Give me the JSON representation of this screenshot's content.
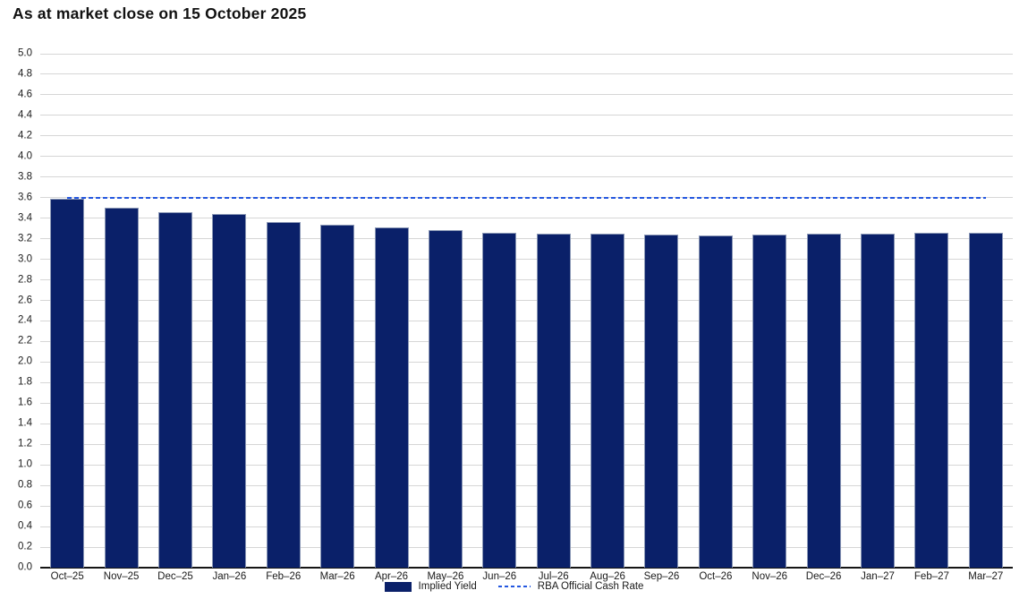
{
  "title": "As at market close on 15 October 2025",
  "legend": {
    "implied_yield_label": "Implied Yield",
    "cash_rate_label": "RBA Official Cash Rate"
  },
  "colors": {
    "bar": "#0a2069",
    "bar_border": "#8a97b5",
    "cash_rate_line": "#2457e0",
    "gridline": "#d6d6d6",
    "axis_line": "#151515",
    "text": "#1a1a1a",
    "title": "#111111",
    "background": "#ffffff"
  },
  "chart_data": {
    "type": "bar",
    "title": "As at market close on 15 October 2025",
    "categories": [
      "Oct–25",
      "Nov–25",
      "Dec–25",
      "Jan–26",
      "Feb–26",
      "Mar–26",
      "Apr–26",
      "May–26",
      "Jun–26",
      "Jul–26",
      "Aug–26",
      "Sep–26",
      "Oct–26",
      "Nov–26",
      "Dec–26",
      "Jan–27",
      "Feb–27",
      "Mar–27"
    ],
    "series": [
      {
        "name": "Implied Yield",
        "type": "bar",
        "values": [
          3.59,
          3.5,
          3.46,
          3.44,
          3.36,
          3.34,
          3.31,
          3.28,
          3.26,
          3.25,
          3.25,
          3.24,
          3.23,
          3.24,
          3.25,
          3.25,
          3.26,
          3.26
        ]
      },
      {
        "name": "RBA Official Cash Rate",
        "type": "line",
        "dashed": true,
        "value": 3.6
      }
    ],
    "xlabel": "",
    "ylabel": "",
    "ylim": [
      0.0,
      5.0
    ],
    "ytick_step": 0.2,
    "ytick_labels": [
      "0.0",
      "0.2",
      "0.4",
      "0.6",
      "0.8",
      "1.0",
      "1.2",
      "1.4",
      "1.6",
      "1.8",
      "2.0",
      "2.2",
      "2.4",
      "2.6",
      "2.8",
      "3.0",
      "3.2",
      "3.4",
      "3.6",
      "3.8",
      "4.0",
      "4.2",
      "4.4",
      "4.6",
      "4.8",
      "5.0"
    ],
    "grid": true,
    "legend_position": "bottom"
  }
}
